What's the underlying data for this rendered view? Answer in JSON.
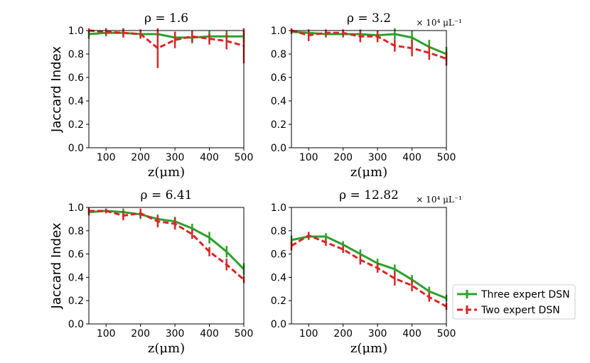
{
  "chart_data": [
    {
      "type": "line",
      "title": "ρ = 1.6",
      "unit": "",
      "xlabel": "z(μm)",
      "ylabel": "Jaccard Index",
      "xlim": [
        50,
        500
      ],
      "ylim": [
        0.0,
        1.0
      ],
      "xticks": [
        100,
        200,
        300,
        400,
        500
      ],
      "yticks": [
        "0.0",
        "0.2",
        "0.4",
        "0.6",
        "0.8",
        "1.0"
      ],
      "x": [
        50,
        100,
        150,
        200,
        250,
        300,
        350,
        400,
        450,
        500
      ],
      "series": [
        {
          "name": "Three expert DSN",
          "values": [
            0.97,
            0.98,
            0.98,
            0.97,
            0.97,
            0.94,
            0.94,
            0.95,
            0.95,
            0.95
          ],
          "err": [
            0.04,
            0.03,
            0.03,
            0.03,
            0.03,
            0.05,
            0.05,
            0.05,
            0.05,
            0.05
          ]
        },
        {
          "name": "Two expert DSN",
          "values": [
            1.0,
            0.99,
            0.98,
            0.97,
            0.85,
            0.92,
            0.95,
            0.93,
            0.91,
            0.87
          ],
          "err": [
            0.02,
            0.03,
            0.04,
            0.04,
            0.17,
            0.07,
            0.05,
            0.05,
            0.07,
            0.15
          ]
        }
      ]
    },
    {
      "type": "line",
      "title": "ρ = 3.2",
      "unit": "× 10⁴ μL⁻¹",
      "xlabel": "z(μm)",
      "ylabel": "",
      "xlim": [
        50,
        500
      ],
      "ylim": [
        0.0,
        1.0
      ],
      "xticks": [
        100,
        200,
        300,
        400,
        500
      ],
      "yticks": [
        "0.0",
        "0.2",
        "0.4",
        "0.6",
        "0.8",
        "1.0"
      ],
      "x": [
        50,
        100,
        150,
        200,
        250,
        300,
        350,
        400,
        450,
        500
      ],
      "series": [
        {
          "name": "Three expert DSN",
          "values": [
            0.99,
            0.98,
            0.97,
            0.97,
            0.97,
            0.96,
            0.97,
            0.94,
            0.86,
            0.8
          ],
          "err": [
            0.02,
            0.03,
            0.03,
            0.03,
            0.04,
            0.04,
            0.05,
            0.06,
            0.06,
            0.06
          ]
        },
        {
          "name": "Two expert DSN",
          "values": [
            1.0,
            0.96,
            0.98,
            0.98,
            0.95,
            0.95,
            0.87,
            0.85,
            0.81,
            0.76
          ],
          "err": [
            0.02,
            0.05,
            0.03,
            0.03,
            0.05,
            0.05,
            0.05,
            0.07,
            0.06,
            0.06
          ]
        }
      ]
    },
    {
      "type": "line",
      "title": "ρ = 6.41",
      "unit": "",
      "xlabel": "z(μm)",
      "ylabel": "Jaccard Index",
      "xlim": [
        50,
        500
      ],
      "ylim": [
        0.0,
        1.0
      ],
      "xticks": [
        100,
        200,
        300,
        400,
        500
      ],
      "yticks": [
        "0.0",
        "0.2",
        "0.4",
        "0.6",
        "0.8",
        "1.0"
      ],
      "x": [
        50,
        100,
        150,
        200,
        250,
        300,
        350,
        400,
        450,
        500
      ],
      "series": [
        {
          "name": "Three expert DSN",
          "values": [
            0.96,
            0.97,
            0.96,
            0.94,
            0.9,
            0.88,
            0.82,
            0.74,
            0.62,
            0.47
          ],
          "err": [
            0.03,
            0.02,
            0.03,
            0.04,
            0.04,
            0.04,
            0.04,
            0.05,
            0.05,
            0.05
          ]
        },
        {
          "name": "Two expert DSN",
          "values": [
            0.97,
            0.97,
            0.93,
            0.95,
            0.88,
            0.86,
            0.77,
            0.62,
            0.51,
            0.38
          ],
          "err": [
            0.03,
            0.02,
            0.04,
            0.04,
            0.05,
            0.05,
            0.04,
            0.04,
            0.05,
            0.03
          ]
        }
      ]
    },
    {
      "type": "line",
      "title": "ρ = 12.82",
      "unit": "× 10⁴ μL⁻¹",
      "xlabel": "z(μm)",
      "ylabel": "",
      "xlim": [
        50,
        500
      ],
      "ylim": [
        0.0,
        1.0
      ],
      "xticks": [
        100,
        200,
        300,
        400,
        500
      ],
      "yticks": [
        "0.0",
        "0.2",
        "0.4",
        "0.6",
        "0.8",
        "1.0"
      ],
      "x": [
        50,
        100,
        150,
        200,
        250,
        300,
        350,
        400,
        450,
        500
      ],
      "series": [
        {
          "name": "Three expert DSN",
          "values": [
            0.72,
            0.75,
            0.75,
            0.68,
            0.6,
            0.52,
            0.47,
            0.38,
            0.28,
            0.22
          ],
          "err": [
            0.04,
            0.03,
            0.03,
            0.03,
            0.04,
            0.04,
            0.04,
            0.04,
            0.04,
            0.03
          ]
        },
        {
          "name": "Two expert DSN",
          "values": [
            0.67,
            0.76,
            0.7,
            0.64,
            0.55,
            0.48,
            0.39,
            0.33,
            0.23,
            0.15
          ],
          "err": [
            0.04,
            0.03,
            0.03,
            0.03,
            0.04,
            0.04,
            0.06,
            0.05,
            0.04,
            0.03
          ]
        }
      ]
    }
  ],
  "legend": {
    "placement": "right",
    "entries": [
      "Three expert DSN",
      "Two expert DSN"
    ]
  },
  "colors": {
    "three": "#2ca02c",
    "two": "#d62728",
    "legend_border": "#cccccc"
  }
}
